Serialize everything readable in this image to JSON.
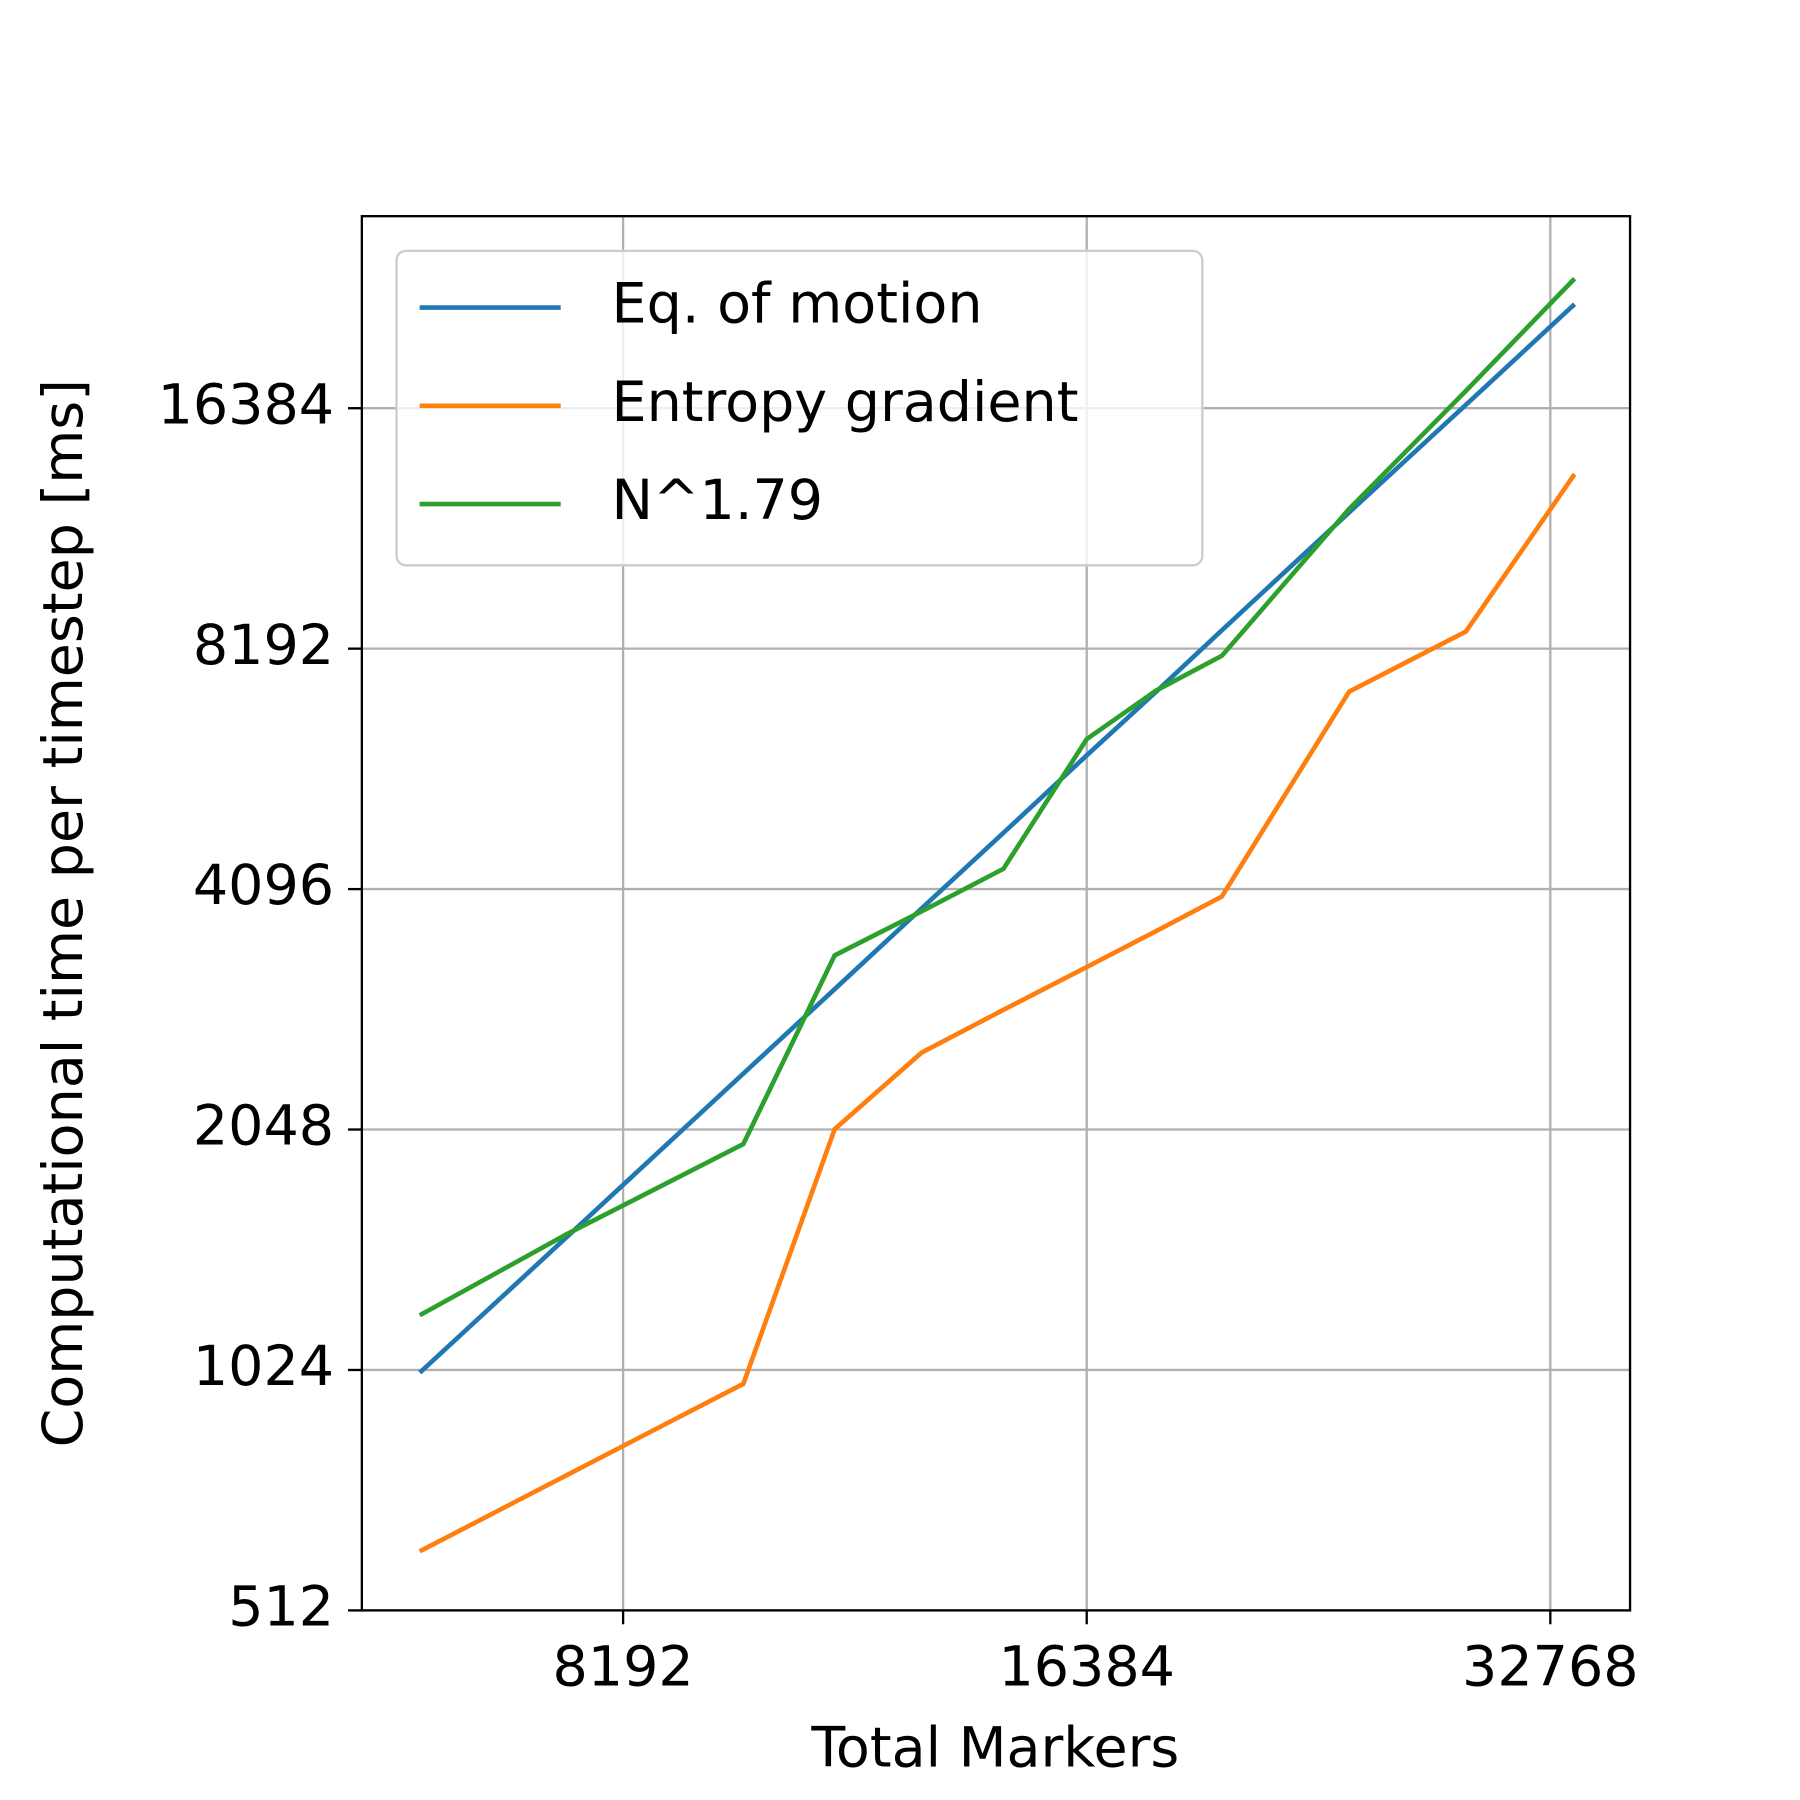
{
  "chart_data": {
    "type": "line",
    "xlabel": "Total Markers",
    "ylabel": "Computational time per timestep [ms]",
    "x": [
      6044,
      7527,
      9806,
      11240,
      12797,
      14467,
      16384,
      18177,
      20054,
      24257,
      28884,
      33980
    ],
    "series": [
      {
        "name": "Eq. of motion",
        "color": "#1f77b4",
        "values": [
          1016,
          1501,
          2407,
          3070,
          3872,
          4818,
          6022,
          7236,
          8636,
          12135,
          16545,
          22118
        ]
      },
      {
        "name": "Entropy gradient",
        "color": "#ff7f0e",
        "values": [
          607,
          756,
          984,
          2050,
          2556,
          2892,
          3271,
          3629,
          4009,
          7236,
          8606,
          13545
        ]
      },
      {
        "name": "N^1.79",
        "color": "#2ca02c",
        "values": [
          1199,
          1514,
          1964,
          3383,
          3840,
          4343,
          6312,
          7261,
          8024,
          12256,
          17225,
          23808
        ]
      }
    ],
    "xlim": [
      5543,
      36917
    ],
    "ylim": [
      512,
      28500
    ],
    "xticks": [
      8192,
      16384,
      32768
    ],
    "yticks": [
      512,
      1024,
      2048,
      4096,
      8192,
      16384
    ],
    "xscale": "log2",
    "yscale": "log2",
    "grid": true,
    "legend": "upper left"
  }
}
